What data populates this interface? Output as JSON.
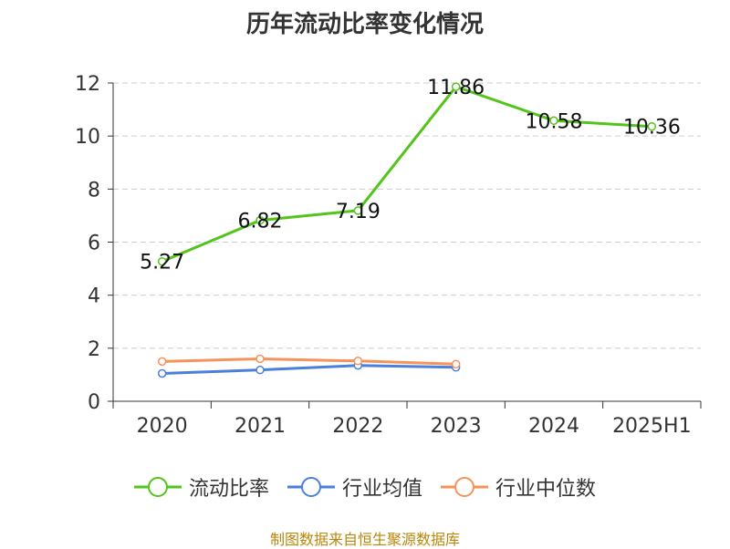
{
  "title": "历年流动比率变化情况",
  "source": "制图数据来自恒生聚源数据库",
  "chart_data": {
    "type": "line",
    "categories": [
      "2020",
      "2021",
      "2022",
      "2023",
      "2024",
      "2025H1"
    ],
    "ylim": [
      0,
      12
    ],
    "yticks": [
      0,
      2,
      4,
      6,
      8,
      10,
      12
    ],
    "grid": true,
    "legend_position": "bottom",
    "series": [
      {
        "name": "流动比率",
        "color": "#52c41a",
        "values": [
          5.27,
          6.82,
          7.19,
          11.86,
          10.58,
          10.36
        ],
        "labels": [
          "5.27",
          "6.82",
          "7.19",
          "11.86",
          "10.58",
          "10.36"
        ]
      },
      {
        "name": "行业均值",
        "color": "#4a7fdb",
        "values": [
          1.05,
          1.18,
          1.35,
          1.28,
          null,
          null
        ]
      },
      {
        "name": "行业中位数",
        "color": "#f5935a",
        "values": [
          1.5,
          1.6,
          1.52,
          1.4,
          null,
          null
        ]
      }
    ]
  }
}
